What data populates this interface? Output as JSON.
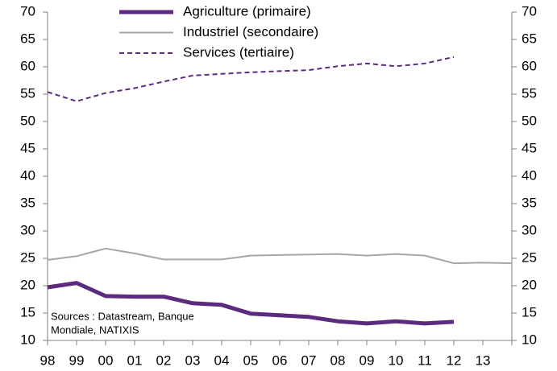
{
  "chart_data": {
    "type": "line",
    "categories": [
      "98",
      "99",
      "00",
      "01",
      "02",
      "03",
      "04",
      "05",
      "06",
      "07",
      "08",
      "09",
      "10",
      "11",
      "12",
      "13",
      null
    ],
    "series": [
      {
        "name": "Agriculture (primaire)",
        "color": "#5c2a7e",
        "width": 5,
        "style": "solid",
        "values": [
          19.7,
          20.5,
          18.1,
          18.0,
          18.0,
          16.8,
          16.5,
          14.9,
          14.6,
          14.3,
          13.5,
          13.1,
          13.5,
          13.1,
          13.4,
          null,
          null
        ]
      },
      {
        "name": "Industriel (secondaire)",
        "color": "#a6a6a6",
        "width": 2,
        "style": "solid",
        "values": [
          24.7,
          25.4,
          26.8,
          25.9,
          24.8,
          24.8,
          24.8,
          25.5,
          25.6,
          25.7,
          25.8,
          25.5,
          25.8,
          25.5,
          24.1,
          24.2,
          24.1
        ]
      },
      {
        "name": "Services (tertiaire)",
        "color": "#5c2a7e",
        "width": 2,
        "style": "dashed",
        "values": [
          55.4,
          53.7,
          55.2,
          56.1,
          57.3,
          58.4,
          58.7,
          59.0,
          59.2,
          59.4,
          60.1,
          60.6,
          60.1,
          60.6,
          61.8,
          null,
          null
        ]
      }
    ],
    "ylim": [
      10,
      70
    ],
    "yticks": [
      10,
      15,
      20,
      25,
      30,
      35,
      40,
      45,
      50,
      55,
      60,
      65,
      70
    ],
    "y2lim": [
      10,
      70
    ],
    "y2ticks": [
      10,
      15,
      20,
      25,
      30,
      35,
      40,
      45,
      50,
      55,
      60,
      65,
      70
    ],
    "annotation": [
      "Sources : Datastream, Banque",
      "Mondiale, NATIXIS"
    ],
    "grid": false,
    "legend": "top"
  }
}
